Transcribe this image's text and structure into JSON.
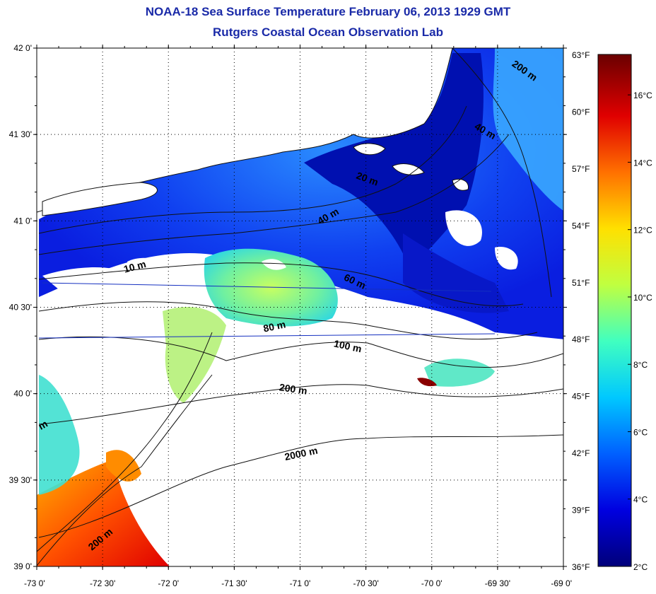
{
  "title": "NOAA-18 Sea Surface Temperature February 06, 2013 1929 GMT",
  "subtitle": "Rutgers Coastal Ocean Observation Lab",
  "map": {
    "lat_labels": [
      "42 0'",
      "41 30'",
      "41 0'",
      "40 30'",
      "40 0'",
      "39 30'",
      "39 0'"
    ],
    "lon_labels": [
      "-73 0'",
      "-72 30'",
      "-72 0'",
      "-71 30'",
      "-71 0'",
      "-70 30'",
      "-70 0'",
      "-69 30'",
      "-69 0'"
    ],
    "lat_range": [
      39.0,
      42.0
    ],
    "lon_range": [
      -73.0,
      -69.0
    ],
    "grid": true,
    "depth_contour_labels": [
      "200 m",
      "40 m",
      "20 m",
      "40 m",
      "10 m",
      "60 m",
      "80 m",
      "100 m",
      "200 m",
      "2000 m",
      "200 m",
      "m"
    ]
  },
  "colorbar": {
    "fahrenheit_labels": [
      "63°F",
      "60°F",
      "57°F",
      "54°F",
      "51°F",
      "48°F",
      "45°F",
      "42°F",
      "39°F",
      "36°F"
    ],
    "celsius_labels": [
      "16°C",
      "14°C",
      "12°C",
      "10°C",
      "8°C",
      "6°C",
      "4°C",
      "2°C"
    ],
    "range_f": [
      36,
      63
    ],
    "range_c": [
      2,
      17.2
    ],
    "colors": [
      "#00007a",
      "#0000e0",
      "#0060ff",
      "#00c8ff",
      "#40ffc0",
      "#c0ff40",
      "#ffe000",
      "#ff7000",
      "#e00000",
      "#6a0000"
    ]
  }
}
